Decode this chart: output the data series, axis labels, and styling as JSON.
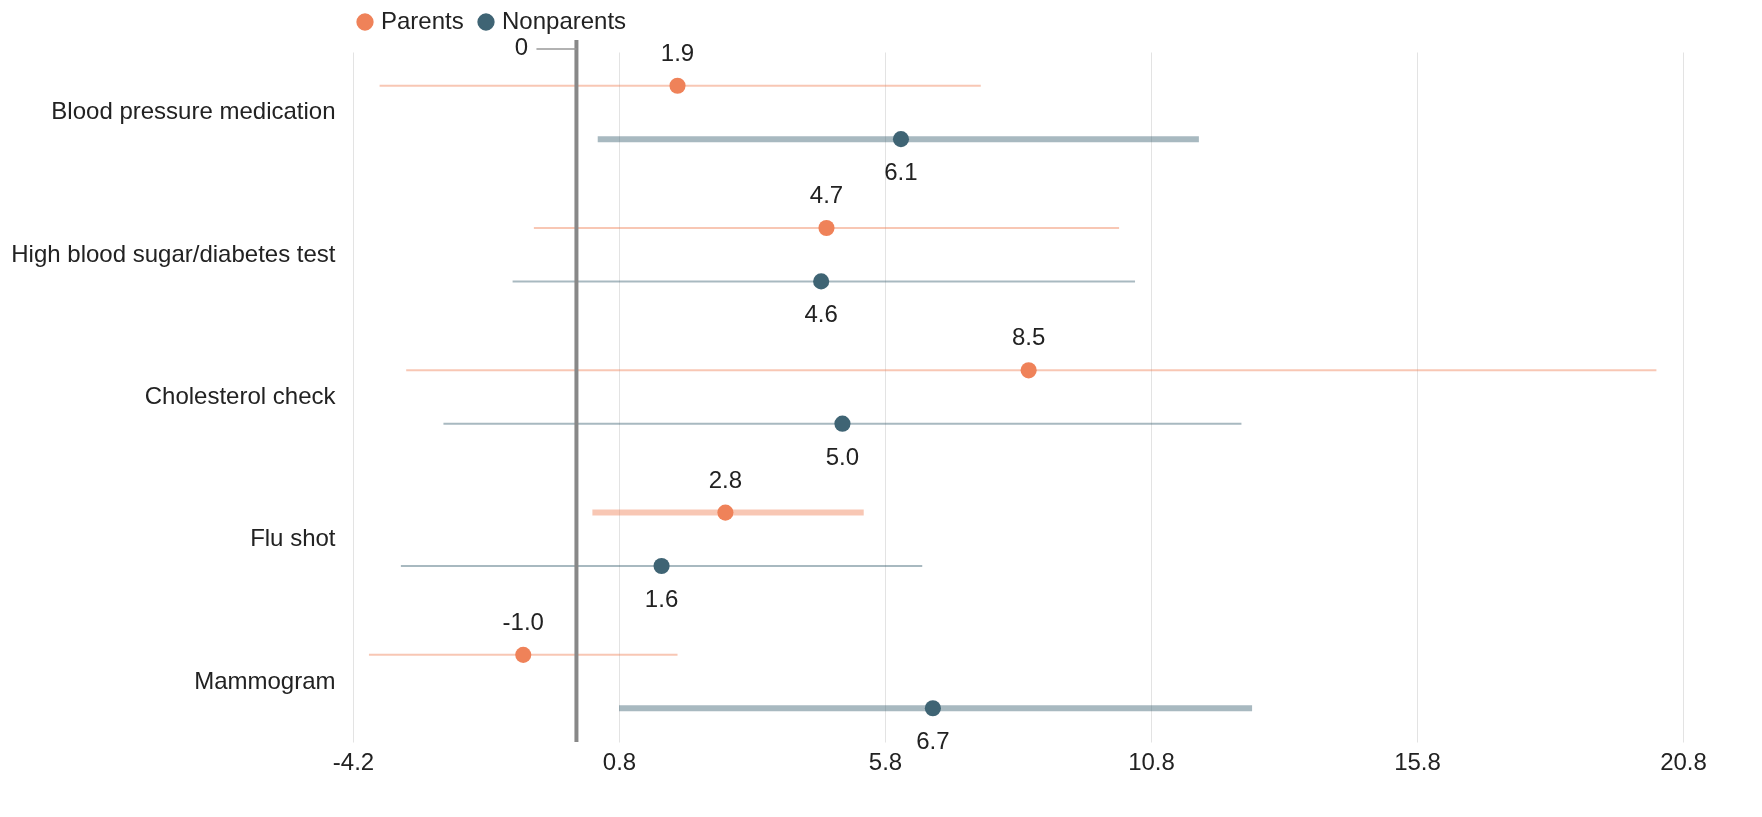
{
  "chart_data": {
    "type": "scatter",
    "categories": [
      "Blood pressure medication",
      "High blood sugar/diabetes test",
      "Cholesterol check",
      "Flu shot",
      "Mammogram"
    ],
    "series": [
      {
        "name": "Parents",
        "color": "#ef8259",
        "values": [
          1.9,
          4.7,
          8.5,
          2.8,
          -1.0
        ],
        "value_labels": [
          "1.9",
          "4.7",
          "8.5",
          "2.8",
          "-1.0"
        ],
        "errors": [
          [
            -3.7,
            7.6
          ],
          [
            -0.8,
            10.2
          ],
          [
            -3.2,
            20.3
          ],
          [
            0.3,
            5.4
          ],
          [
            -3.9,
            1.9
          ]
        ]
      },
      {
        "name": "Nonparents",
        "color": "#3f6474",
        "values": [
          6.1,
          4.6,
          5.0,
          1.6,
          6.7
        ],
        "value_labels": [
          "6.1",
          "4.6",
          "5.0",
          "1.6",
          "6.7"
        ],
        "errors": [
          [
            0.4,
            11.7
          ],
          [
            -1.2,
            10.5
          ],
          [
            -2.5,
            12.5
          ],
          [
            -3.3,
            6.5
          ],
          [
            0.8,
            12.7
          ]
        ]
      }
    ],
    "xlim": [
      -4.2,
      20.8
    ],
    "xticks": [
      -4.2,
      0.8,
      5.8,
      10.8,
      15.8,
      20.8
    ],
    "ref_lines": [
      {
        "axis": "x",
        "value": 0,
        "label": "0",
        "color": "#888888"
      }
    ],
    "grid": "x",
    "legend": "top",
    "marker": "circle",
    "orientation": "horizontal"
  }
}
